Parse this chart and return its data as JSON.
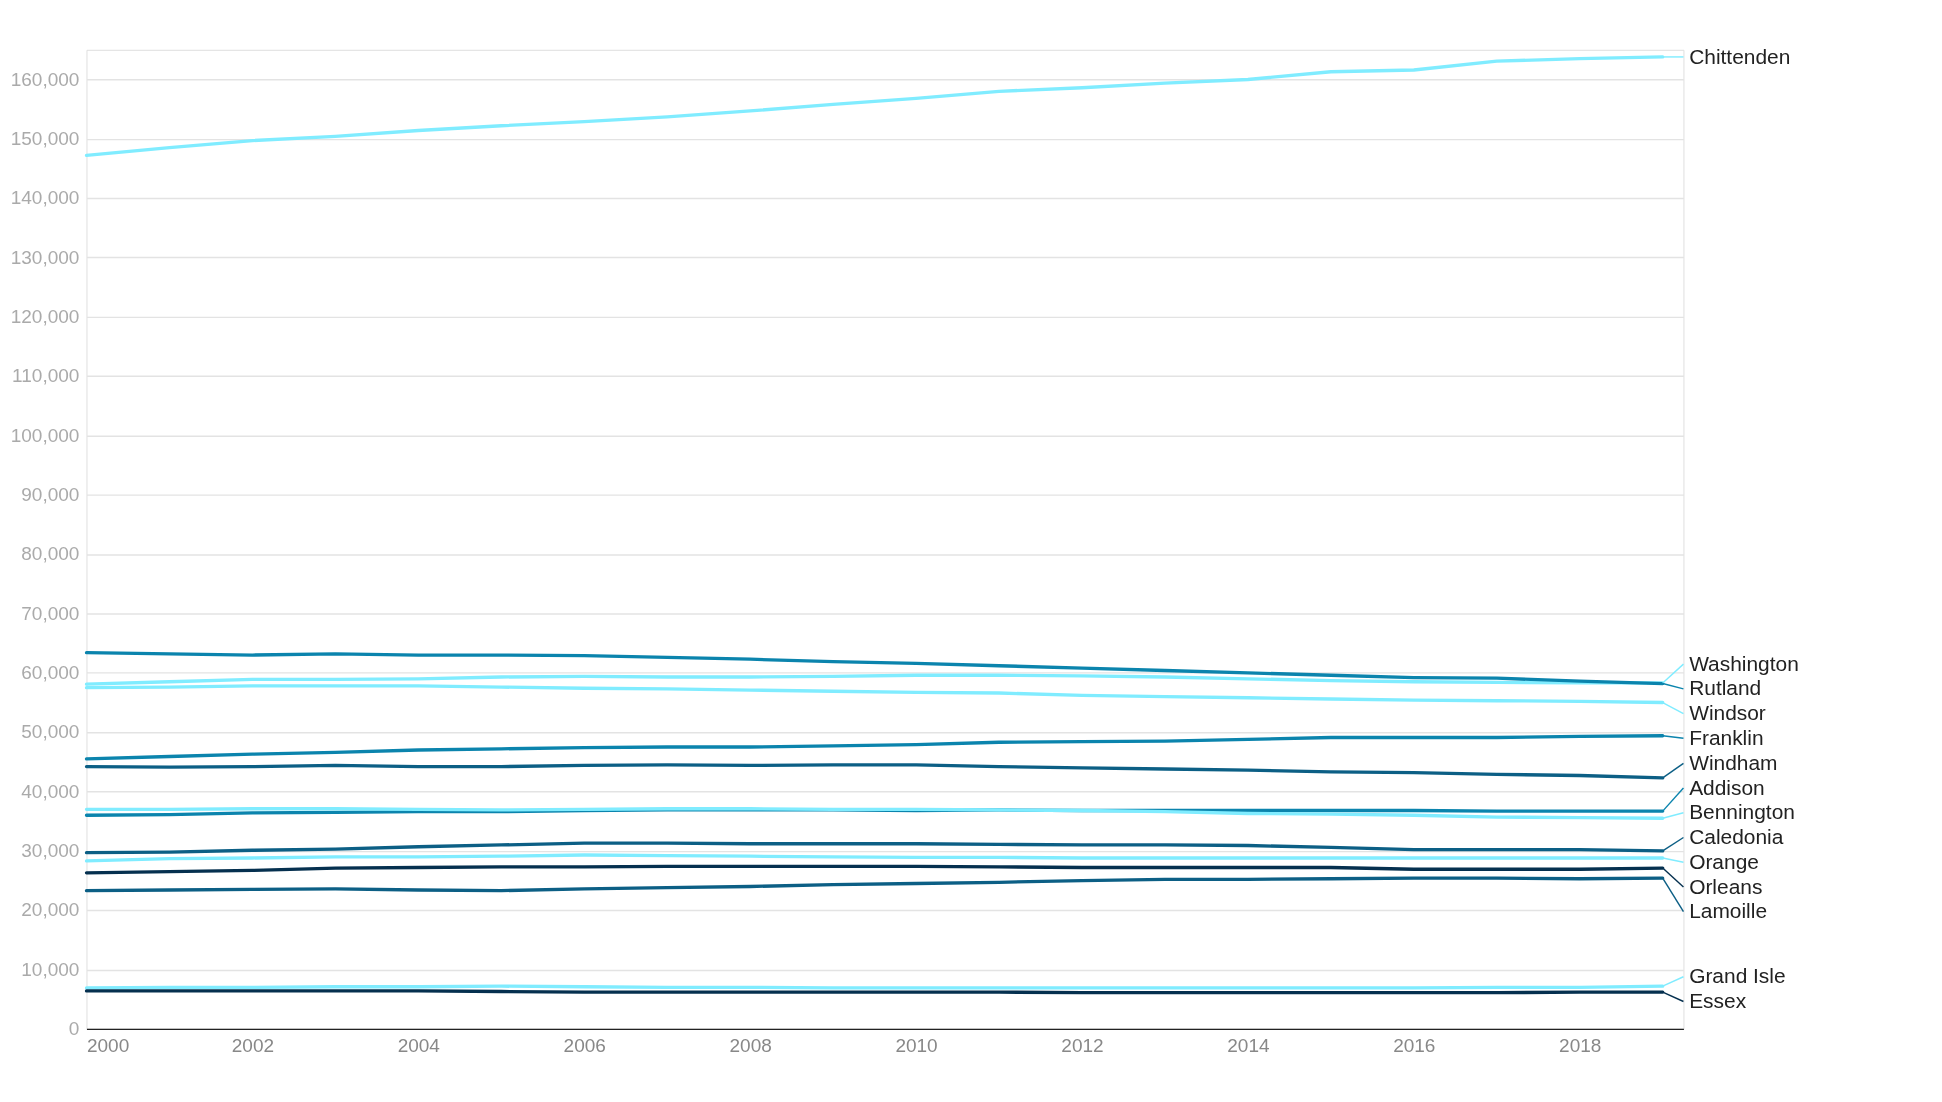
{
  "chart_data": {
    "type": "line",
    "x": [
      2000,
      2001,
      2002,
      2003,
      2004,
      2005,
      2006,
      2007,
      2008,
      2009,
      2010,
      2011,
      2012,
      2013,
      2014,
      2015,
      2016,
      2017,
      2018,
      2019
    ],
    "xlim": [
      2000,
      2019.25
    ],
    "xticks": [
      2000,
      2002,
      2004,
      2006,
      2008,
      2010,
      2012,
      2014,
      2016,
      2018
    ],
    "ylim": [
      0,
      165000
    ],
    "yticks": [
      0,
      {
        "value": 10000,
        "label": "10,000"
      },
      {
        "value": 20000,
        "label": "20,000"
      },
      {
        "value": 30000,
        "label": "30,000"
      },
      {
        "value": 40000,
        "label": "40,000"
      },
      {
        "value": 50000,
        "label": "50,000"
      },
      {
        "value": 60000,
        "label": "60,000"
      },
      {
        "value": 70000,
        "label": "70,000"
      },
      {
        "value": 80000,
        "label": "80,000"
      },
      {
        "value": 90000,
        "label": "90,000"
      },
      {
        "value": 100000,
        "label": "100,000"
      },
      {
        "value": 110000,
        "label": "110,000"
      },
      {
        "value": 120000,
        "label": "120,000"
      },
      {
        "value": 130000,
        "label": "130,000"
      },
      {
        "value": 140000,
        "label": "140,000"
      },
      {
        "value": 150000,
        "label": "150,000"
      },
      {
        "value": 160000,
        "label": "160,000"
      }
    ],
    "grid": "y",
    "legend": "right",
    "series": [
      {
        "name": "Chittenden",
        "color": "#80ecff",
        "values": [
          147200,
          148500,
          149700,
          150400,
          151400,
          152200,
          152900,
          153700,
          154700,
          155800,
          156800,
          158000,
          158600,
          159400,
          160000,
          161300,
          161600,
          163100,
          163500,
          163800
        ]
      },
      {
        "name": "Washington",
        "color": "#80ecff",
        "values": [
          58100,
          58500,
          58900,
          58900,
          59000,
          59300,
          59400,
          59300,
          59300,
          59400,
          59600,
          59600,
          59500,
          59300,
          59000,
          58700,
          58500,
          58400,
          58300,
          58300
        ]
      },
      {
        "name": "Rutland",
        "color": "#0b84ad",
        "values": [
          63400,
          63200,
          63000,
          63200,
          63000,
          63000,
          62900,
          62600,
          62300,
          61900,
          61600,
          61200,
          60800,
          60400,
          60000,
          59600,
          59200,
          59100,
          58600,
          58200
        ]
      },
      {
        "name": "Windsor",
        "color": "#80ecff",
        "values": [
          57500,
          57600,
          57800,
          57800,
          57800,
          57600,
          57400,
          57300,
          57100,
          56900,
          56700,
          56600,
          56200,
          56000,
          55800,
          55600,
          55400,
          55300,
          55200,
          55000
        ]
      },
      {
        "name": "Franklin",
        "color": "#0b84ad",
        "values": [
          45500,
          45900,
          46300,
          46600,
          47000,
          47200,
          47400,
          47500,
          47500,
          47700,
          47900,
          48300,
          48400,
          48500,
          48800,
          49100,
          49100,
          49100,
          49300,
          49400
        ]
      },
      {
        "name": "Windham",
        "color": "#0c5f85",
        "values": [
          44200,
          44100,
          44200,
          44400,
          44200,
          44200,
          44400,
          44500,
          44400,
          44500,
          44500,
          44200,
          44000,
          43800,
          43600,
          43300,
          43200,
          42900,
          42700,
          42300
        ]
      },
      {
        "name": "Addison",
        "color": "#0b84ad",
        "values": [
          36000,
          36100,
          36400,
          36500,
          36600,
          36600,
          36800,
          36900,
          36900,
          36900,
          36800,
          36900,
          36800,
          36800,
          36800,
          36800,
          36800,
          36700,
          36700,
          36700
        ]
      },
      {
        "name": "Bennington",
        "color": "#80ecff",
        "values": [
          37000,
          37000,
          37100,
          37100,
          37000,
          36900,
          37000,
          37100,
          37100,
          37000,
          37000,
          36900,
          36800,
          36600,
          36300,
          36200,
          36000,
          35700,
          35600,
          35500
        ]
      },
      {
        "name": "Caledonia",
        "color": "#0c5f85",
        "values": [
          29700,
          29800,
          30100,
          30300,
          30700,
          31000,
          31300,
          31300,
          31200,
          31200,
          31200,
          31100,
          31000,
          31000,
          30900,
          30600,
          30200,
          30200,
          30200,
          30000
        ]
      },
      {
        "name": "Orange",
        "color": "#80ecff",
        "values": [
          28300,
          28700,
          28800,
          29000,
          29000,
          29100,
          29300,
          29200,
          29100,
          29000,
          28900,
          28900,
          28800,
          28800,
          28800,
          28800,
          28800,
          28800,
          28800,
          28800
        ]
      },
      {
        "name": "Orleans",
        "color": "#05304f",
        "values": [
          26300,
          26500,
          26700,
          27100,
          27200,
          27300,
          27300,
          27400,
          27400,
          27400,
          27400,
          27300,
          27200,
          27200,
          27200,
          27200,
          26900,
          26900,
          26900,
          27100
        ]
      },
      {
        "name": "Lamoille",
        "color": "#0c5f85",
        "values": [
          23300,
          23400,
          23500,
          23600,
          23400,
          23300,
          23600,
          23800,
          24000,
          24300,
          24500,
          24700,
          25000,
          25200,
          25200,
          25300,
          25400,
          25400,
          25300,
          25400
        ]
      },
      {
        "name": "Grand Isle",
        "color": "#80ecff",
        "values": [
          6900,
          7000,
          7000,
          7100,
          7100,
          7200,
          7100,
          7000,
          7000,
          6900,
          6900,
          6900,
          6900,
          6900,
          6900,
          6900,
          6900,
          7000,
          7000,
          7200
        ]
      },
      {
        "name": "Essex",
        "color": "#05304f",
        "values": [
          6400,
          6400,
          6400,
          6400,
          6400,
          6300,
          6200,
          6200,
          6200,
          6200,
          6200,
          6200,
          6100,
          6100,
          6100,
          6100,
          6100,
          6100,
          6200,
          6200
        ]
      }
    ]
  }
}
